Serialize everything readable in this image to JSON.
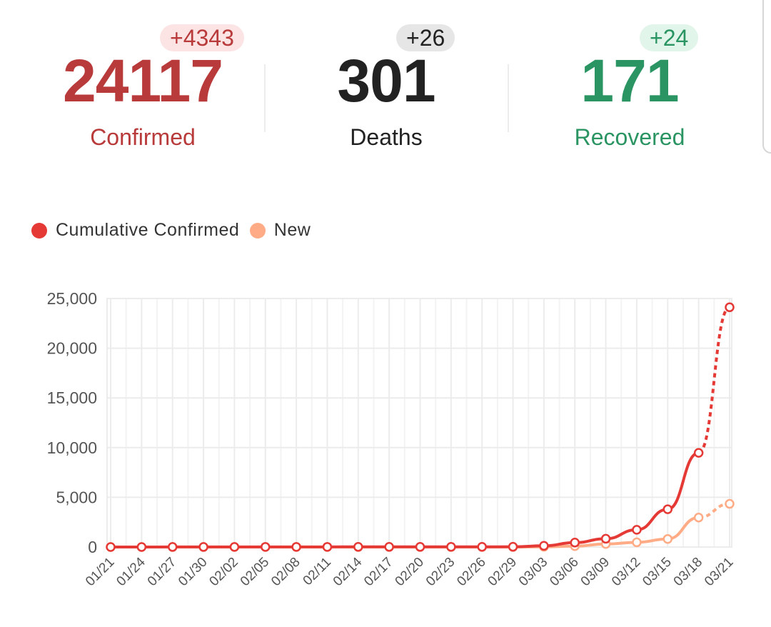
{
  "stats": {
    "confirmed": {
      "value": "24117",
      "delta": "+4343",
      "label": "Confirmed",
      "color": "#b83a3a",
      "badge_bg": "#fde4e4"
    },
    "deaths": {
      "value": "301",
      "delta": "+26",
      "label": "Deaths",
      "color": "#222222",
      "badge_bg": "#e6e6e6"
    },
    "recovered": {
      "value": "171",
      "delta": "+24",
      "label": "Recovered",
      "color": "#2a9462",
      "badge_bg": "#e2f5ea"
    }
  },
  "legend": {
    "items": [
      {
        "label": "Cumulative Confirmed",
        "color": "#e53935"
      },
      {
        "label": "New",
        "color": "#ffab85"
      }
    ]
  },
  "chart_data": {
    "type": "line",
    "x": [
      "01/21",
      "01/24",
      "01/27",
      "01/30",
      "02/02",
      "02/05",
      "02/08",
      "02/11",
      "02/14",
      "02/17",
      "02/20",
      "02/23",
      "02/26",
      "02/29",
      "03/03",
      "03/06",
      "03/09",
      "03/12",
      "03/15",
      "03/18",
      "03/21"
    ],
    "y_ticks": [
      0,
      5000,
      10000,
      15000,
      20000,
      25000
    ],
    "y_tick_labels": [
      "0",
      "5,000",
      "10,000",
      "15,000",
      "20,000",
      "25,000"
    ],
    "ylim": [
      0,
      25000
    ],
    "grid": true,
    "legend_position": "top-left",
    "series": [
      {
        "name": "Cumulative Confirmed",
        "color": "#e53935",
        "values": [
          1,
          1,
          5,
          6,
          8,
          12,
          12,
          13,
          15,
          15,
          15,
          15,
          16,
          24,
          122,
          445,
          832,
          1732,
          3802,
          9473,
          24117
        ]
      },
      {
        "name": "New",
        "color": "#ffab85",
        "values": [
          0,
          0,
          1,
          0,
          0,
          0,
          0,
          0,
          0,
          0,
          0,
          0,
          0,
          4,
          21,
          90,
          306,
          472,
          812,
          2965,
          4343
        ]
      }
    ]
  }
}
